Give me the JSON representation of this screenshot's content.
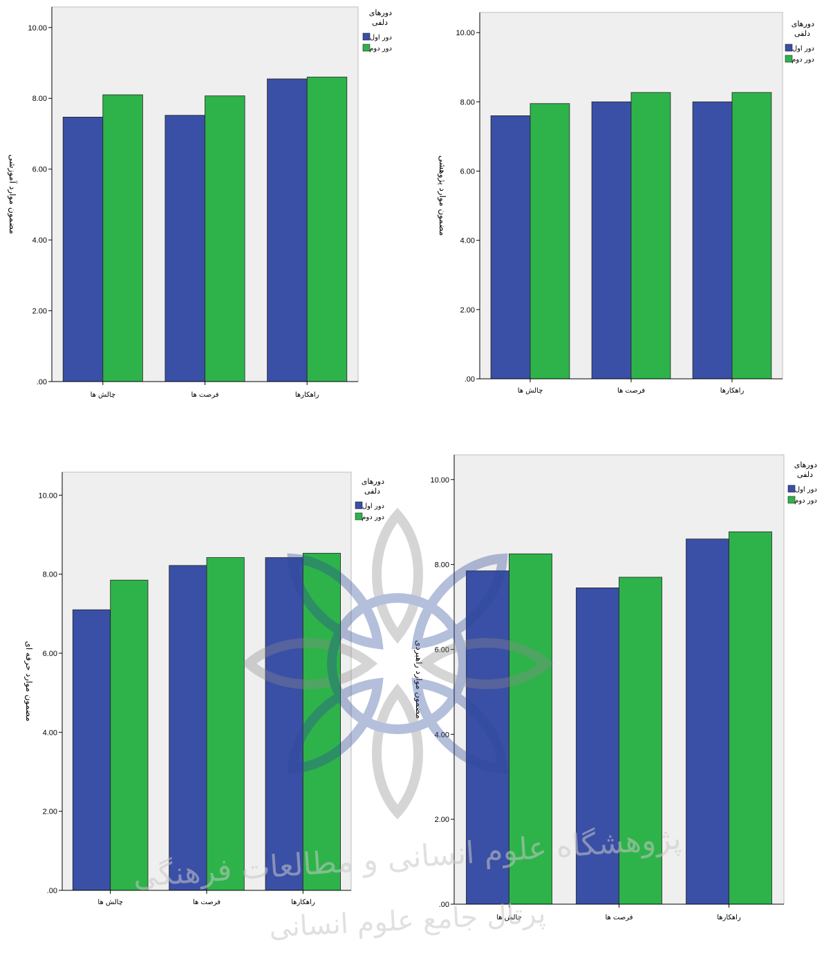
{
  "colors": {
    "series_1": "#3a4fa6",
    "series_2": "#2eb34a",
    "plot_bg": "#efefef",
    "axis": "#000000",
    "watermark": "#c8c8c8"
  },
  "watermark": {
    "line_1": "پژوهشگاه علوم انسانی و مطالعات فرهنگی",
    "line_2": "پرتال جامع علوم انسانی"
  },
  "chart_data": [
    {
      "type": "bar",
      "title": "",
      "ylabel": "مضمون موارد آموزشی",
      "xlabel": "",
      "categories": [
        "چالش ها",
        "فرصت ها",
        "راهکارها"
      ],
      "ylim": [
        0,
        10
      ],
      "yticks": [
        ".00",
        "2.00",
        "4.00",
        "6.00",
        "8.00",
        "10.00"
      ],
      "grid": false,
      "legend": {
        "title_line_1": "دورهای",
        "title_line_2": "دلفی",
        "position": "top-right"
      },
      "series": [
        {
          "name": "دور اول",
          "values": [
            7.47,
            7.52,
            8.55
          ]
        },
        {
          "name": "دور دوم",
          "values": [
            8.1,
            8.07,
            8.6
          ]
        }
      ]
    },
    {
      "type": "bar",
      "title": "",
      "ylabel": "مضمون موارد پژوهشی",
      "xlabel": "",
      "categories": [
        "چالش ها",
        "فرصت ها",
        "راهکارها"
      ],
      "ylim": [
        0,
        10
      ],
      "yticks": [
        ".00",
        "2.00",
        "4.00",
        "6.00",
        "8.00",
        "10.00"
      ],
      "grid": false,
      "legend": {
        "title_line_1": "دورهای",
        "title_line_2": "دلفی",
        "position": "top-right"
      },
      "series": [
        {
          "name": "دور اول",
          "values": [
            7.6,
            8.0,
            8.0
          ]
        },
        {
          "name": "دور دوم",
          "values": [
            7.95,
            8.27,
            8.27
          ]
        }
      ]
    },
    {
      "type": "bar",
      "title": "",
      "ylabel": "مضمون موارد حرفه ای",
      "xlabel": "",
      "categories": [
        "چالش ها",
        "فرصت ها",
        "راهکارها"
      ],
      "ylim": [
        0,
        10
      ],
      "yticks": [
        ".00",
        "2.00",
        "4.00",
        "6.00",
        "8.00",
        "10.00"
      ],
      "grid": false,
      "legend": {
        "title_line_1": "دورهای",
        "title_line_2": "دلفی",
        "position": "top-right"
      },
      "series": [
        {
          "name": "دور اول",
          "values": [
            7.1,
            8.22,
            8.42
          ]
        },
        {
          "name": "دور دوم",
          "values": [
            7.85,
            8.42,
            8.53
          ]
        }
      ]
    },
    {
      "type": "bar",
      "title": "",
      "ylabel": "مضمون موارد راهبردی",
      "xlabel": "",
      "categories": [
        "چالش ها",
        "فرصت ها",
        "راهکارها"
      ],
      "ylim": [
        0,
        10
      ],
      "yticks": [
        ".00",
        "2.00",
        "4.00",
        "6.00",
        "8.00",
        "10.00"
      ],
      "grid": false,
      "legend": {
        "title_line_1": "دورهای",
        "title_line_2": "دلفی",
        "position": "top-right"
      },
      "series": [
        {
          "name": "دور اول",
          "values": [
            7.85,
            7.45,
            8.6
          ]
        },
        {
          "name": "دور دوم",
          "values": [
            8.25,
            7.7,
            8.77
          ]
        }
      ]
    }
  ]
}
